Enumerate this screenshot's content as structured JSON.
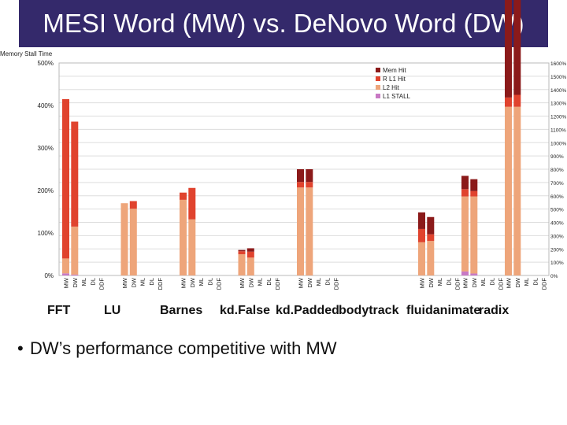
{
  "slide": {
    "title": "MESI Word (MW) vs. DeNovo Word (DW)",
    "bullet": "DW’s performance competitive with MW",
    "title_bg": "#34296b"
  },
  "chart_data": [
    {
      "type": "bar",
      "stacked": true,
      "ylabel": "Memory Stall Time",
      "ylim": [
        0,
        500
      ],
      "yticks": [
        "0%",
        "100%",
        "200%",
        "300%",
        "400%",
        "500%"
      ],
      "bar_labels": [
        "MW",
        "DW",
        "ML",
        "DL",
        "DDF"
      ],
      "groups": [
        "FFT",
        "LU",
        "Barnes",
        "kd.False",
        "kd.Padded"
      ],
      "legend": {
        "placement": "top-right",
        "entries": [
          {
            "name": "Mem Hit",
            "color": "#8b1a1a"
          },
          {
            "name": "R L1 Hit",
            "color": "#e0432e"
          },
          {
            "name": "L2 Hit",
            "color": "#eea57a"
          },
          {
            "name": "L1 STALL",
            "color": "#c879c4"
          }
        ]
      },
      "series_colors": {
        "l1stall": "#c879c4",
        "l2hit": "#eea57a",
        "rl1hit": "#e0432e",
        "memhit": "#8b1a1a"
      },
      "bars": [
        {
          "group": "FFT",
          "label": "MW",
          "l1stall": 5,
          "l2hit": 35,
          "rl1hit": 375,
          "memhit": 0
        },
        {
          "group": "FFT",
          "label": "DW",
          "l1stall": 2,
          "l2hit": 113,
          "rl1hit": 247,
          "memhit": 0
        },
        {
          "group": "LU",
          "label": "MW",
          "l1stall": 0,
          "l2hit": 170,
          "rl1hit": 0,
          "memhit": 0
        },
        {
          "group": "LU",
          "label": "DW",
          "l1stall": 0,
          "l2hit": 157,
          "rl1hit": 18,
          "memhit": 0
        },
        {
          "group": "Barnes",
          "label": "MW",
          "l1stall": 0,
          "l2hit": 178,
          "rl1hit": 17,
          "memhit": 0
        },
        {
          "group": "Barnes",
          "label": "DW",
          "l1stall": 0,
          "l2hit": 132,
          "rl1hit": 74,
          "memhit": 0
        },
        {
          "group": "kd.False",
          "label": "MW",
          "l1stall": 0,
          "l2hit": 50,
          "rl1hit": 7,
          "memhit": 3
        },
        {
          "group": "kd.False",
          "label": "DW",
          "l1stall": 0,
          "l2hit": 42,
          "rl1hit": 14,
          "memhit": 8
        },
        {
          "group": "kd.Padded",
          "label": "MW",
          "l1stall": 0,
          "l2hit": 207,
          "rl1hit": 13,
          "memhit": 30
        },
        {
          "group": "kd.Padded",
          "label": "DW",
          "l1stall": 0,
          "l2hit": 207,
          "rl1hit": 13,
          "memhit": 30
        }
      ]
    },
    {
      "type": "bar",
      "stacked": true,
      "ylim": [
        0,
        1600
      ],
      "yticks": [
        "0%",
        "100%",
        "200%",
        "300%",
        "400%",
        "500%",
        "600%",
        "700%",
        "800%",
        "900%",
        "1000%",
        "1100%",
        "1200%",
        "1300%",
        "1400%",
        "1500%",
        "1600%"
      ],
      "bar_labels": [
        "MW",
        "DW",
        "ML",
        "DL",
        "DDF"
      ],
      "groups": [
        "bodytrack",
        "fluidanimate",
        "radix"
      ],
      "bars": [
        {
          "group": "bodytrack",
          "label": "MW",
          "l1stall": 0,
          "l2hit": 250,
          "rl1hit": 100,
          "memhit": 125
        },
        {
          "group": "bodytrack",
          "label": "DW",
          "l1stall": 0,
          "l2hit": 260,
          "rl1hit": 50,
          "memhit": 130
        },
        {
          "group": "fluidanimate",
          "label": "MW",
          "l1stall": 30,
          "l2hit": 565,
          "rl1hit": 55,
          "memhit": 100
        },
        {
          "group": "fluidanimate",
          "label": "DW",
          "l1stall": 15,
          "l2hit": 580,
          "rl1hit": 40,
          "memhit": 90
        },
        {
          "group": "radix",
          "label": "MW",
          "l1stall": 0,
          "l2hit": 1270,
          "rl1hit": 70,
          "memhit": 1700
        },
        {
          "group": "radix",
          "label": "DW",
          "l1stall": 0,
          "l2hit": 1270,
          "rl1hit": 90,
          "memhit": 1700
        }
      ]
    }
  ]
}
